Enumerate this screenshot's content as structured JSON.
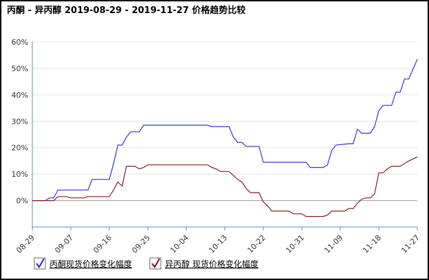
{
  "chart_data": {
    "type": "line",
    "title": "丙酮 - 异丙醇 2019-08-29 - 2019-11-27 价格趋势比较",
    "xlim": [
      "08-29",
      "11-27"
    ],
    "xticks": [
      "08-29",
      "09-07",
      "09-16",
      "09-25",
      "10-04",
      "10-13",
      "10-22",
      "10-31",
      "11-09",
      "11-18",
      "11-27"
    ],
    "ylim": [
      -10,
      60
    ],
    "yticks": [
      {
        "value": 0,
        "label": "0%"
      },
      {
        "value": 10,
        "label": "10%"
      },
      {
        "value": 20,
        "label": "20%"
      },
      {
        "value": 30,
        "label": "30%"
      },
      {
        "value": 40,
        "label": "40%"
      },
      {
        "value": 50,
        "label": "50%"
      },
      {
        "value": 60,
        "label": "60%"
      }
    ],
    "grid": true,
    "series": [
      {
        "name": "丙酮现货价格变化幅度",
        "color": "#3434d4",
        "x": [
          "08-29",
          "09-01",
          "09-02",
          "09-03",
          "09-04",
          "09-11",
          "09-12",
          "09-16",
          "09-17",
          "09-18",
          "09-19",
          "09-20",
          "09-21",
          "09-23",
          "09-24",
          "10-09",
          "10-10",
          "10-14",
          "10-15",
          "10-16",
          "10-17",
          "10-18",
          "10-21",
          "10-22",
          "11-01",
          "11-02",
          "11-05",
          "11-06",
          "11-07",
          "11-08",
          "11-11",
          "11-12",
          "11-13",
          "11-14",
          "11-16",
          "11-17",
          "11-18",
          "11-19",
          "11-21",
          "11-22",
          "11-23",
          "11-24",
          "11-25",
          "11-27"
        ],
        "values": [
          0,
          0,
          1,
          1,
          4,
          4,
          8,
          8,
          14,
          21,
          21,
          24,
          26,
          26,
          28.5,
          28.5,
          28,
          28,
          24,
          22,
          22,
          20.5,
          20.5,
          14.5,
          14.5,
          12.5,
          12.5,
          13.5,
          19,
          21,
          21.5,
          21.5,
          27,
          25.5,
          25.5,
          28,
          34,
          36,
          36,
          41,
          41,
          46,
          46,
          53.5
        ]
      },
      {
        "name": "异丙醇 现货价格变化幅度",
        "color": "#8b1c1c",
        "x": [
          "08-29",
          "09-03",
          "09-04",
          "09-06",
          "09-07",
          "09-10",
          "09-11",
          "09-16",
          "09-17",
          "09-18",
          "09-19",
          "09-20",
          "09-22",
          "09-23",
          "09-24",
          "09-25",
          "10-09",
          "10-10",
          "10-11",
          "10-12",
          "10-14",
          "10-15",
          "10-16",
          "10-17",
          "10-18",
          "10-19",
          "10-21",
          "10-22",
          "10-23",
          "10-24",
          "10-28",
          "10-29",
          "10-31",
          "11-01",
          "11-05",
          "11-06",
          "11-07",
          "11-10",
          "11-11",
          "11-12",
          "11-13",
          "11-14",
          "11-15",
          "11-16",
          "11-17",
          "11-18",
          "11-19",
          "11-20",
          "11-21",
          "11-23",
          "11-24",
          "11-25",
          "11-27"
        ],
        "values": [
          0,
          0,
          1.5,
          1.5,
          1,
          1,
          1.5,
          1.5,
          4,
          7,
          5.5,
          13,
          13,
          12,
          12.5,
          13.5,
          13.5,
          12.5,
          12,
          11,
          11,
          9.5,
          8,
          7,
          4.5,
          3,
          3,
          -0.5,
          -2,
          -4,
          -4,
          -5,
          -5,
          -6,
          -6,
          -5.5,
          -4,
          -4,
          -3,
          -3,
          -1,
          0.5,
          1,
          1,
          2.5,
          10.5,
          10.5,
          12,
          13,
          13,
          14,
          15,
          16.5
        ]
      }
    ]
  }
}
